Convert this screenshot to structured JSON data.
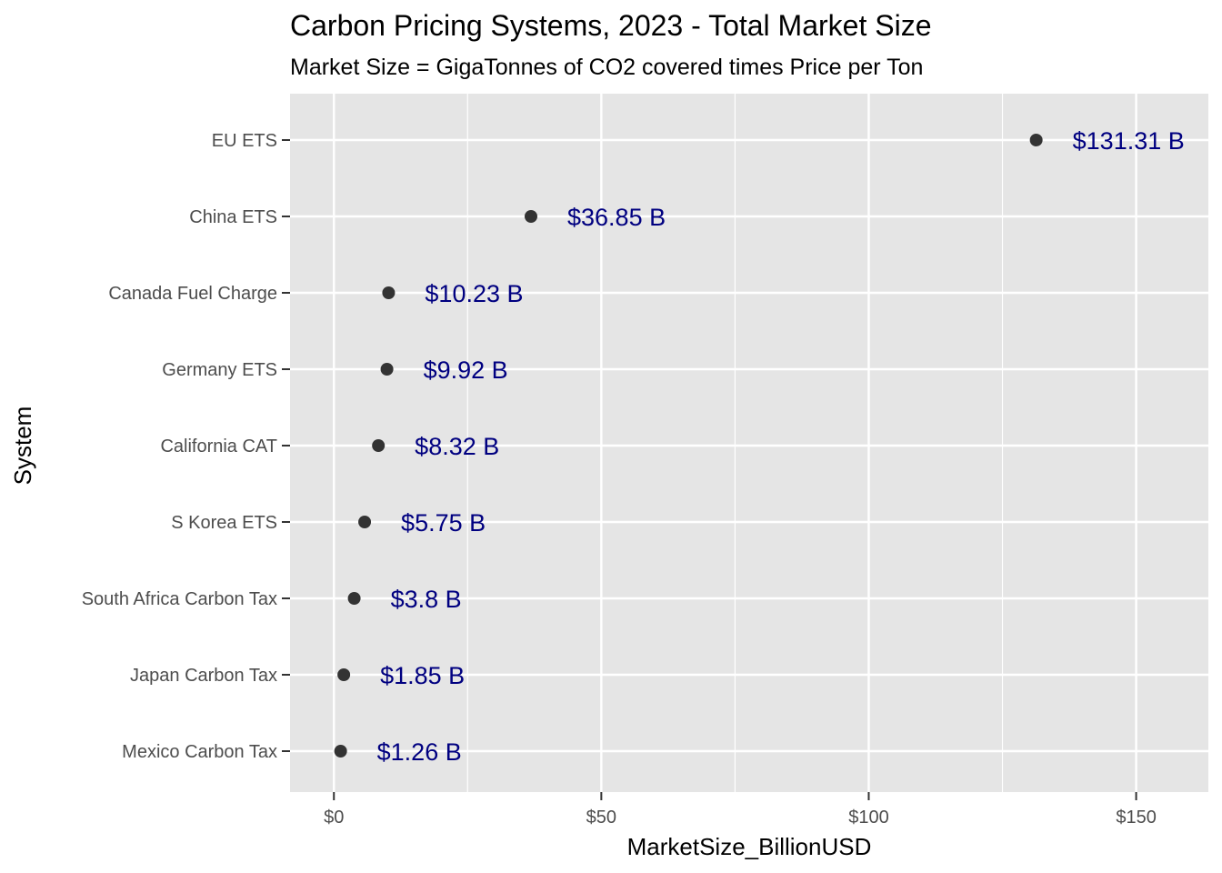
{
  "chart_data": {
    "type": "scatter",
    "title": "Carbon Pricing Systems, 2023 - Total Market Size",
    "subtitle": "Market Size = GigaTonnes of CO2 covered times Price per Ton",
    "xlabel": "MarketSize_BillionUSD",
    "ylabel": "System",
    "xlim": [
      -8.2,
      163.5
    ],
    "x_ticks": [
      0,
      50,
      100,
      150
    ],
    "x_tick_labels": [
      "$0",
      "$50",
      "$100",
      "$150"
    ],
    "grid": true,
    "categories": [
      "EU ETS",
      "China ETS",
      "Canada Fuel Charge",
      "Germany ETS",
      "California CAT",
      "S Korea ETS",
      "South Africa Carbon Tax",
      "Japan Carbon Tax",
      "Mexico Carbon Tax"
    ],
    "values": [
      131.31,
      36.85,
      10.23,
      9.92,
      8.32,
      5.75,
      3.8,
      1.85,
      1.26
    ],
    "data_labels": [
      "$131.31 B",
      "$36.85 B",
      "$10.23 B",
      "$9.92 B",
      "$8.32 B",
      "$5.75 B",
      "$3.8 B",
      "$1.85 B",
      "$1.26 B"
    ],
    "colors": {
      "panel": "#e5e5e5",
      "grid": "#ffffff",
      "point": "#333333",
      "label": "#000080"
    }
  }
}
